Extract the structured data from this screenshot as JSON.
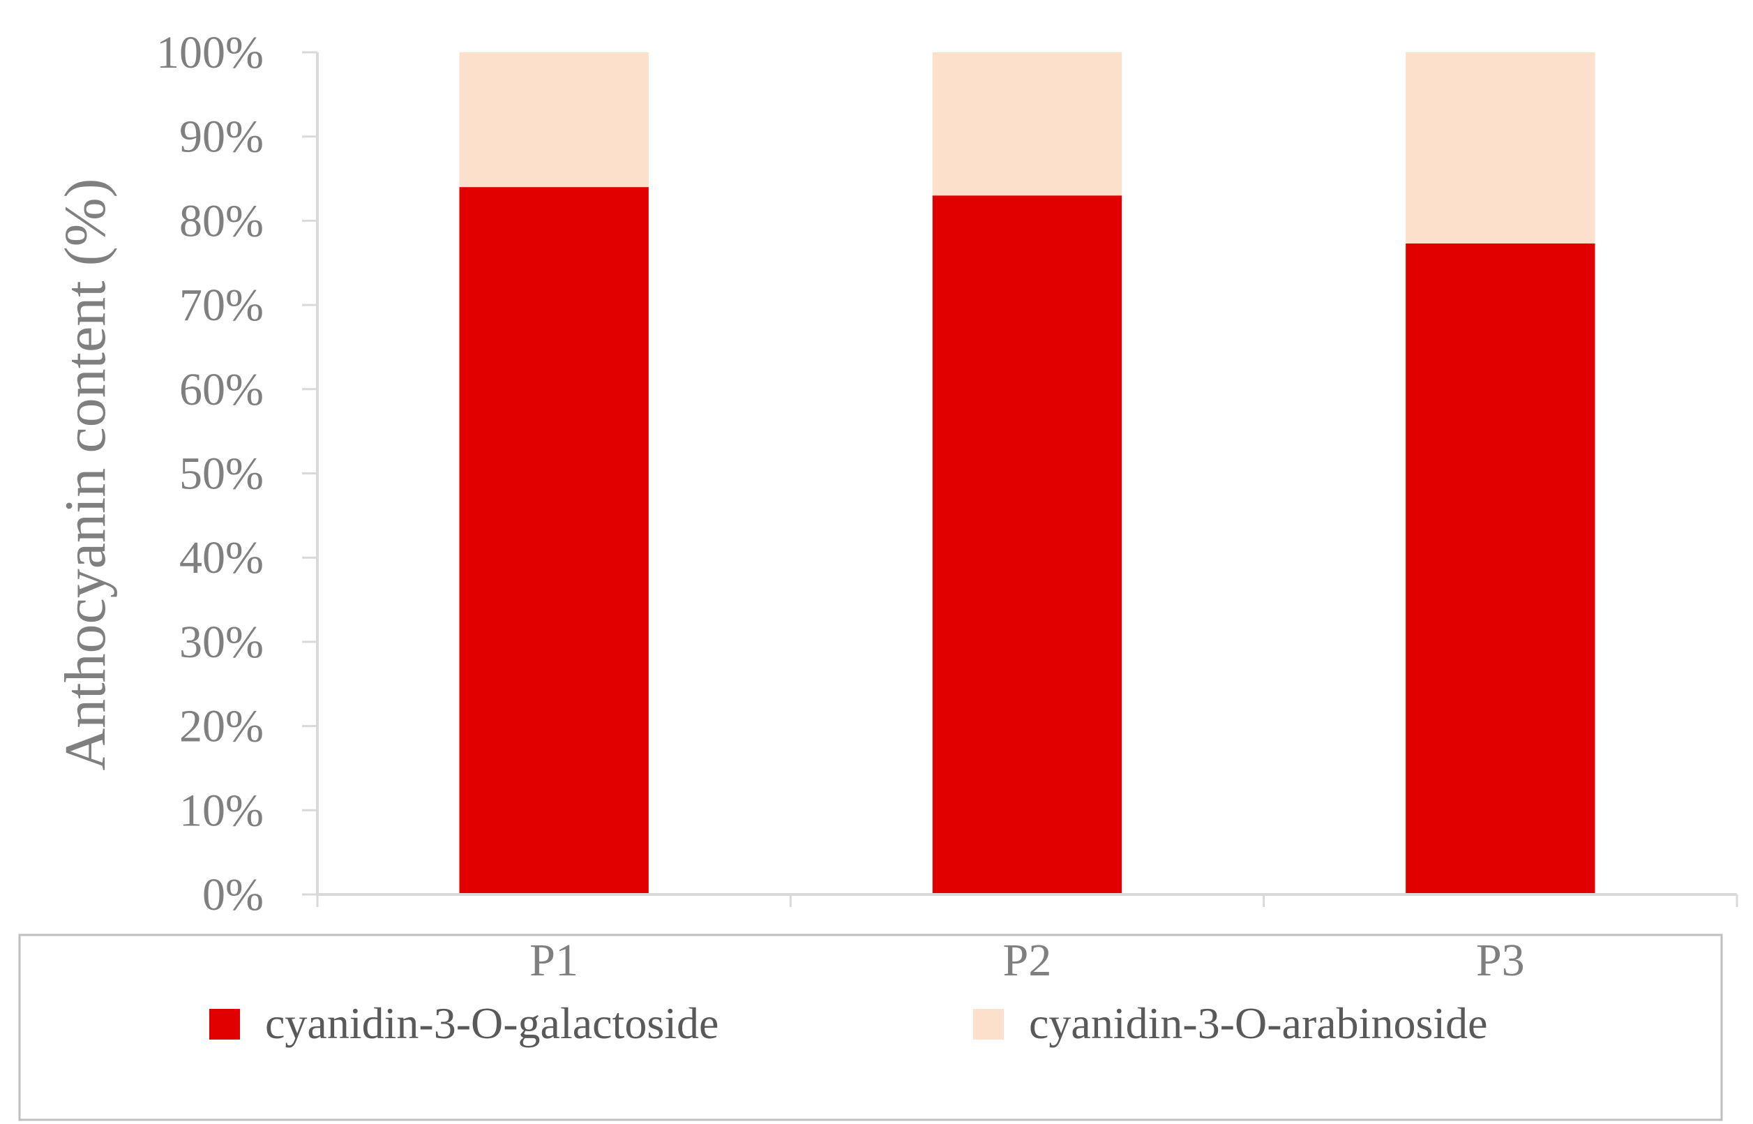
{
  "chart_data": {
    "type": "bar",
    "stacked": true,
    "percent_stacked": true,
    "categories": [
      "P1",
      "P2",
      "P3"
    ],
    "series": [
      {
        "name": "cyanidin-3-O-galactoside",
        "values": [
          84,
          83,
          77.3
        ],
        "color": "#e00000"
      },
      {
        "name": "cyanidin-3-O-arabinoside",
        "values": [
          16,
          17,
          22.7
        ],
        "color": "#fde0cc"
      }
    ],
    "ylabel": "Anthocyanin content (%)",
    "xlabel": "",
    "ylim": [
      0,
      100
    ],
    "yticks": [
      "0%",
      "10%",
      "20%",
      "30%",
      "40%",
      "50%",
      "60%",
      "70%",
      "80%",
      "90%",
      "100%"
    ],
    "grid": false,
    "legend_position": "bottom",
    "axis_color": "#d9d9d9",
    "text_color": "#7f7f7f"
  }
}
